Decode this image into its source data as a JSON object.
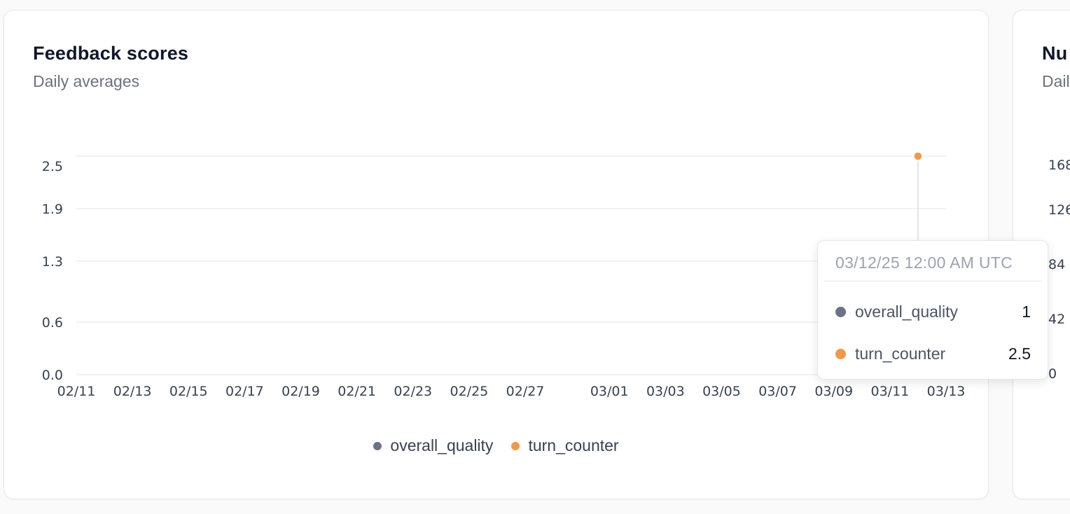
{
  "card": {
    "title": "Feedback scores",
    "subtitle": "Daily averages"
  },
  "right_card": {
    "title": "Nu",
    "subtitle": "Dail",
    "ticks": [
      "168",
      "126",
      "84",
      "42",
      "0"
    ]
  },
  "colors": {
    "overall_quality": "#6b7487",
    "turn_counter": "#f0994b",
    "grid": "#eceef1",
    "tick_text": "#374151"
  },
  "chart_data": {
    "type": "line",
    "title": "Feedback scores",
    "subtitle": "Daily averages",
    "xlabel": "",
    "ylabel": "",
    "x_ticks": [
      "02/11",
      "02/13",
      "02/15",
      "02/17",
      "02/19",
      "02/21",
      "02/23",
      "02/25",
      "02/27",
      "03/01",
      "03/03",
      "03/05",
      "03/07",
      "03/09",
      "03/11",
      "03/13"
    ],
    "y_ticks": [
      "0.0",
      "0.6",
      "1.3",
      "1.9",
      "2.5"
    ],
    "ylim": [
      0,
      2.5
    ],
    "xlim": [
      "02/11",
      "03/13"
    ],
    "grid": true,
    "legend": "bottom-center",
    "series": [
      {
        "name": "overall_quality",
        "points": [
          {
            "x": "03/12",
            "y": 1
          }
        ]
      },
      {
        "name": "turn_counter",
        "points": [
          {
            "x": "03/12",
            "y": 2.5
          }
        ]
      }
    ]
  },
  "tooltip": {
    "header": "03/12/25 12:00 AM UTC",
    "rows": [
      {
        "name": "overall_quality",
        "value": "1"
      },
      {
        "name": "turn_counter",
        "value": "2.5"
      }
    ]
  }
}
